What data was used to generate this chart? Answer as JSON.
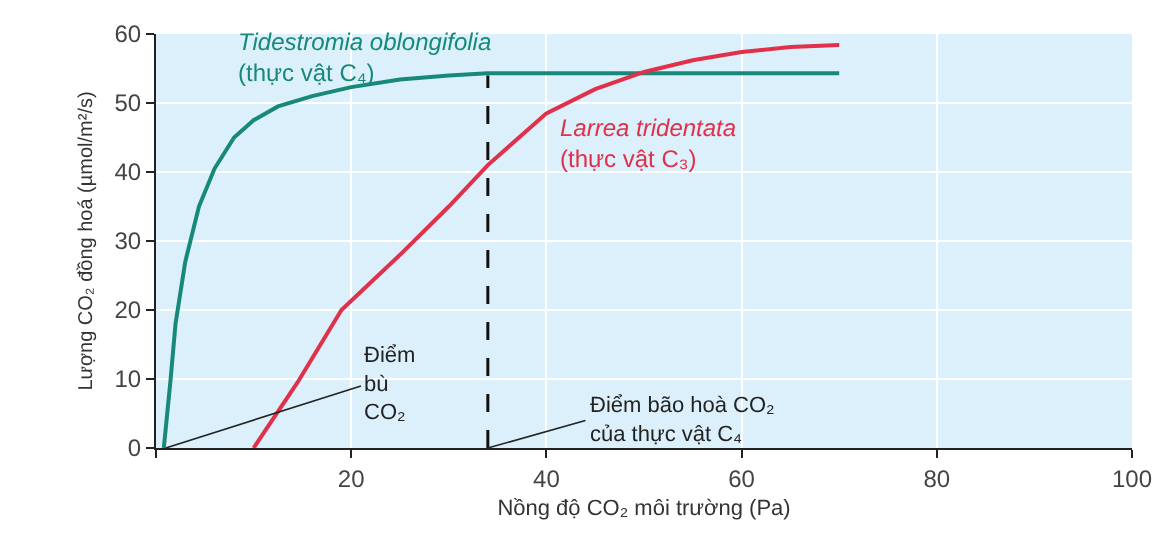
{
  "chart_data": {
    "type": "line",
    "xlabel": "Nồng độ CO₂ môi trường (Pa)",
    "ylabel": "Lượng CO₂ đồng hoá (µmol/m²/s)",
    "xlim": [
      0,
      100
    ],
    "xticks": [
      {
        "value": 0,
        "label": null
      },
      20,
      40,
      60,
      80,
      100
    ],
    "ylim": [
      0,
      60
    ],
    "yticks": [
      0,
      10,
      20,
      30,
      40,
      50,
      60
    ],
    "grid": true,
    "legend": false,
    "line_style": "solid",
    "marker": "none",
    "series": [
      {
        "name": "Tidestromia oblongifolia\n(thực vật C₄)",
        "color": "#16897a",
        "x": [
          0.8,
          1.5,
          2,
          3,
          4.4,
          6,
          8,
          10,
          12.5,
          16,
          20,
          25,
          30,
          34,
          70
        ],
        "values": [
          0,
          10,
          18,
          27,
          35,
          40.5,
          45,
          47.5,
          49.5,
          51,
          52.3,
          53.4,
          54,
          54.3,
          54.3
        ]
      },
      {
        "name": "Larrea tridentata\n(thực vật C₃)",
        "color": "#e0304a",
        "x": [
          10,
          14.5,
          19,
          25,
          30,
          34,
          40,
          45,
          50,
          55,
          60,
          65,
          70
        ],
        "values": [
          0,
          9.5,
          20,
          28,
          35,
          41,
          48.5,
          52,
          54.5,
          56.2,
          57.4,
          58.1,
          58.4
        ]
      }
    ],
    "ref_lines": [
      {
        "axis": "x",
        "value": 34,
        "color": "#111111",
        "line_style": "dashed"
      }
    ],
    "annotations": [
      {
        "text": "Điểm\nbù\nCO₂",
        "x": 1,
        "y": 0
      },
      {
        "text": "Điểm bão hoà CO₂\ncủa thực vật C₄",
        "x": 34,
        "y": 0
      }
    ]
  }
}
